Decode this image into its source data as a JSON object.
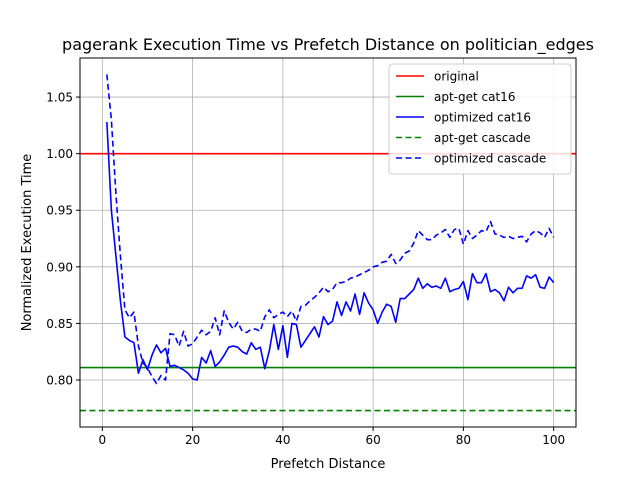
{
  "chart_data": {
    "type": "line",
    "title": "pagerank Execution Time vs Prefetch Distance on politician_edges",
    "xlabel": "Prefetch Distance",
    "ylabel": "Normalized Execution Time",
    "xlim": [
      -4.95,
      104.95
    ],
    "ylim": [
      0.7585,
      1.0845
    ],
    "xticks": [
      0,
      20,
      40,
      60,
      80,
      100
    ],
    "yticks": [
      0.8,
      0.85,
      0.9,
      0.95,
      1.0,
      1.05
    ],
    "xtick_labels": [
      "0",
      "20",
      "40",
      "60",
      "80",
      "100"
    ],
    "ytick_labels": [
      "0.80",
      "0.85",
      "0.90",
      "0.95",
      "1.00",
      "1.05"
    ],
    "grid": true,
    "legend_position": "upper right",
    "series": [
      {
        "name": "original",
        "color": "#ff0000",
        "dash": "solid",
        "kind": "hline",
        "y": 1.0
      },
      {
        "name": "apt-get cat16",
        "color": "#008000",
        "dash": "solid",
        "kind": "hline",
        "y": 0.811
      },
      {
        "name": "optimized cat16",
        "color": "#0000ff",
        "dash": "solid",
        "kind": "line",
        "x": [
          1,
          2,
          3,
          4,
          5,
          6,
          7,
          8,
          9,
          10,
          11,
          12,
          13,
          14,
          15,
          16,
          17,
          18,
          19,
          20,
          21,
          22,
          23,
          24,
          25,
          26,
          27,
          28,
          29,
          30,
          31,
          32,
          33,
          34,
          35,
          36,
          37,
          38,
          39,
          40,
          41,
          42,
          43,
          44,
          45,
          46,
          47,
          48,
          49,
          50,
          51,
          52,
          53,
          54,
          55,
          56,
          57,
          58,
          59,
          60,
          61,
          62,
          63,
          64,
          65,
          66,
          67,
          68,
          69,
          70,
          71,
          72,
          73,
          74,
          75,
          76,
          77,
          78,
          79,
          80,
          81,
          82,
          83,
          84,
          85,
          86,
          87,
          88,
          89,
          90,
          91,
          92,
          93,
          94,
          95,
          96,
          97,
          98,
          99,
          100
        ],
        "y": [
          1.028,
          0.95,
          0.91,
          0.87,
          0.838,
          0.835,
          0.833,
          0.806,
          0.818,
          0.809,
          0.822,
          0.831,
          0.824,
          0.828,
          0.812,
          0.813,
          0.811,
          0.809,
          0.806,
          0.801,
          0.8,
          0.82,
          0.815,
          0.826,
          0.812,
          0.816,
          0.822,
          0.829,
          0.83,
          0.829,
          0.825,
          0.823,
          0.833,
          0.827,
          0.829,
          0.81,
          0.826,
          0.849,
          0.827,
          0.848,
          0.82,
          0.85,
          0.849,
          0.829,
          0.835,
          0.841,
          0.847,
          0.838,
          0.856,
          0.849,
          0.852,
          0.869,
          0.857,
          0.869,
          0.861,
          0.876,
          0.858,
          0.877,
          0.868,
          0.862,
          0.85,
          0.86,
          0.867,
          0.865,
          0.851,
          0.872,
          0.872,
          0.876,
          0.88,
          0.89,
          0.881,
          0.885,
          0.882,
          0.883,
          0.881,
          0.89,
          0.878,
          0.88,
          0.881,
          0.887,
          0.871,
          0.894,
          0.886,
          0.886,
          0.894,
          0.878,
          0.88,
          0.877,
          0.87,
          0.882,
          0.877,
          0.881,
          0.881,
          0.892,
          0.89,
          0.893,
          0.882,
          0.881,
          0.891,
          0.886
        ]
      },
      {
        "name": "apt-get cascade",
        "color": "#008000",
        "dash": "dashed",
        "kind": "hline",
        "y": 0.773
      },
      {
        "name": "optimized cascade",
        "color": "#0000ff",
        "dash": "dashed",
        "kind": "line",
        "x": [
          1,
          2,
          3,
          4,
          5,
          6,
          7,
          8,
          9,
          10,
          11,
          12,
          13,
          14,
          15,
          16,
          17,
          18,
          19,
          20,
          21,
          22,
          23,
          24,
          25,
          26,
          27,
          28,
          29,
          30,
          31,
          32,
          33,
          34,
          35,
          36,
          37,
          38,
          39,
          40,
          41,
          42,
          43,
          44,
          45,
          46,
          47,
          48,
          49,
          50,
          51,
          52,
          53,
          54,
          55,
          56,
          57,
          58,
          59,
          60,
          61,
          62,
          63,
          64,
          65,
          66,
          67,
          68,
          69,
          70,
          71,
          72,
          73,
          74,
          75,
          76,
          77,
          78,
          79,
          80,
          81,
          82,
          83,
          84,
          85,
          86,
          87,
          88,
          89,
          90,
          91,
          92,
          93,
          94,
          95,
          96,
          97,
          98,
          99,
          100
        ],
        "y": [
          1.07,
          1.03,
          0.965,
          0.91,
          0.862,
          0.855,
          0.86,
          0.83,
          0.815,
          0.811,
          0.803,
          0.797,
          0.804,
          0.8,
          0.841,
          0.84,
          0.83,
          0.843,
          0.83,
          0.832,
          0.838,
          0.844,
          0.84,
          0.843,
          0.855,
          0.84,
          0.861,
          0.851,
          0.845,
          0.851,
          0.843,
          0.842,
          0.845,
          0.845,
          0.843,
          0.856,
          0.862,
          0.855,
          0.858,
          0.86,
          0.856,
          0.861,
          0.852,
          0.865,
          0.866,
          0.87,
          0.873,
          0.877,
          0.882,
          0.878,
          0.88,
          0.886,
          0.886,
          0.887,
          0.89,
          0.891,
          0.893,
          0.895,
          0.897,
          0.9,
          0.901,
          0.904,
          0.905,
          0.911,
          0.903,
          0.906,
          0.912,
          0.914,
          0.921,
          0.932,
          0.928,
          0.924,
          0.924,
          0.928,
          0.93,
          0.933,
          0.926,
          0.933,
          0.934,
          0.92,
          0.932,
          0.925,
          0.928,
          0.932,
          0.931,
          0.94,
          0.929,
          0.928,
          0.926,
          0.927,
          0.925,
          0.926,
          0.927,
          0.922,
          0.929,
          0.932,
          0.93,
          0.926,
          0.934,
          0.926
        ]
      }
    ]
  }
}
